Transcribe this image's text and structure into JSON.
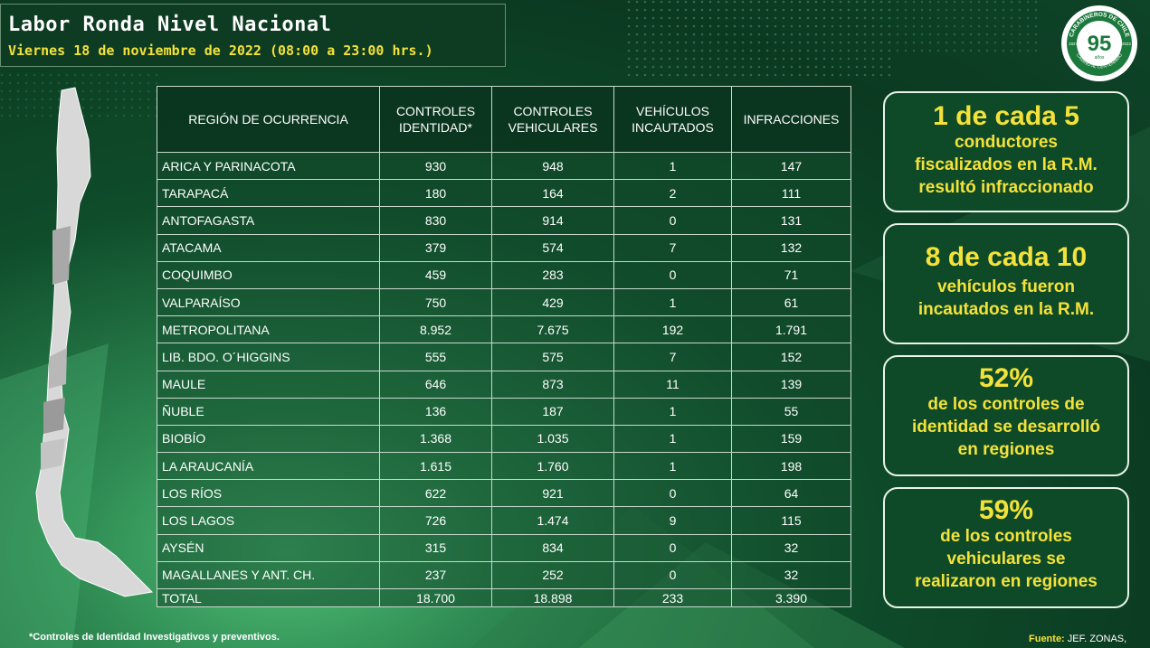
{
  "header": {
    "title": "Labor Ronda Nivel Nacional",
    "subtitle": "Viernes 18 de noviembre de 2022 (08:00 a 23:00 hrs.)"
  },
  "logo": {
    "icon": "carabineros-95-anos-logo",
    "text_top": "CARABINEROS DE CHILE",
    "number": "95",
    "sub": "años",
    "year_left": "1927",
    "year_right": "2022",
    "text_bottom": "CAMINO AL CENTENARIO"
  },
  "table": {
    "headers": [
      "REGIÓN DE OCURRENCIA",
      "CONTROLES IDENTIDAD*",
      "CONTROLES VEHICULARES",
      "VEHÍCULOS INCAUTADOS",
      "INFRACCIONES"
    ],
    "rows": [
      [
        "ARICA Y PARINACOTA",
        "930",
        "948",
        "1",
        "147"
      ],
      [
        "TARAPACÁ",
        "180",
        "164",
        "2",
        "111"
      ],
      [
        "ANTOFAGASTA",
        "830",
        "914",
        "0",
        "131"
      ],
      [
        "ATACAMA",
        "379",
        "574",
        "7",
        "132"
      ],
      [
        "COQUIMBO",
        "459",
        "283",
        "0",
        "71"
      ],
      [
        "VALPARAÍSO",
        "750",
        "429",
        "1",
        "61"
      ],
      [
        "METROPOLITANA",
        "8.952",
        "7.675",
        "192",
        "1.791"
      ],
      [
        "LIB. BDO. O´HIGGINS",
        "555",
        "575",
        "7",
        "152"
      ],
      [
        "MAULE",
        "646",
        "873",
        "11",
        "139"
      ],
      [
        "ÑUBLE",
        "136",
        "187",
        "1",
        "55"
      ],
      [
        "BIOBÍO",
        "1.368",
        "1.035",
        "1",
        "159"
      ],
      [
        "LA ARAUCANÍA",
        "1.615",
        "1.760",
        "1",
        "198"
      ],
      [
        "LOS RÍOS",
        "622",
        "921",
        "0",
        "64"
      ],
      [
        "LOS LAGOS",
        "726",
        "1.474",
        "9",
        "115"
      ],
      [
        "AYSÉN",
        "315",
        "834",
        "0",
        "32"
      ],
      [
        "MAGALLANES Y ANT. CH.",
        "237",
        "252",
        "0",
        "32"
      ]
    ],
    "total": [
      "TOTAL",
      "18.700",
      "18.898",
      "233",
      "3.390"
    ]
  },
  "cards": [
    {
      "big": "1 de cada 5",
      "lines": [
        "conductores",
        "fiscalizados en la R.M.",
        "resultó infraccionado"
      ]
    },
    {
      "big": "8 de cada 10",
      "lines": [
        "vehículos  fueron",
        "incautados en la R.M."
      ]
    },
    {
      "big": "52%",
      "lines": [
        "de los controles de",
        "identidad se desarrolló",
        "en regiones"
      ]
    },
    {
      "big": "59%",
      "lines": [
        "de los controles",
        "vehiculares se",
        "realizaron en regiones"
      ]
    }
  ],
  "footnote": "*Controles de Identidad Investigativos y preventivos.",
  "source": {
    "label": "Fuente:",
    "value": "JEF. ZONAS,"
  },
  "colors": {
    "accent_yellow": "#f4e23a",
    "panel_green": "#0e4a28",
    "background_dark": "#0b3a21"
  }
}
